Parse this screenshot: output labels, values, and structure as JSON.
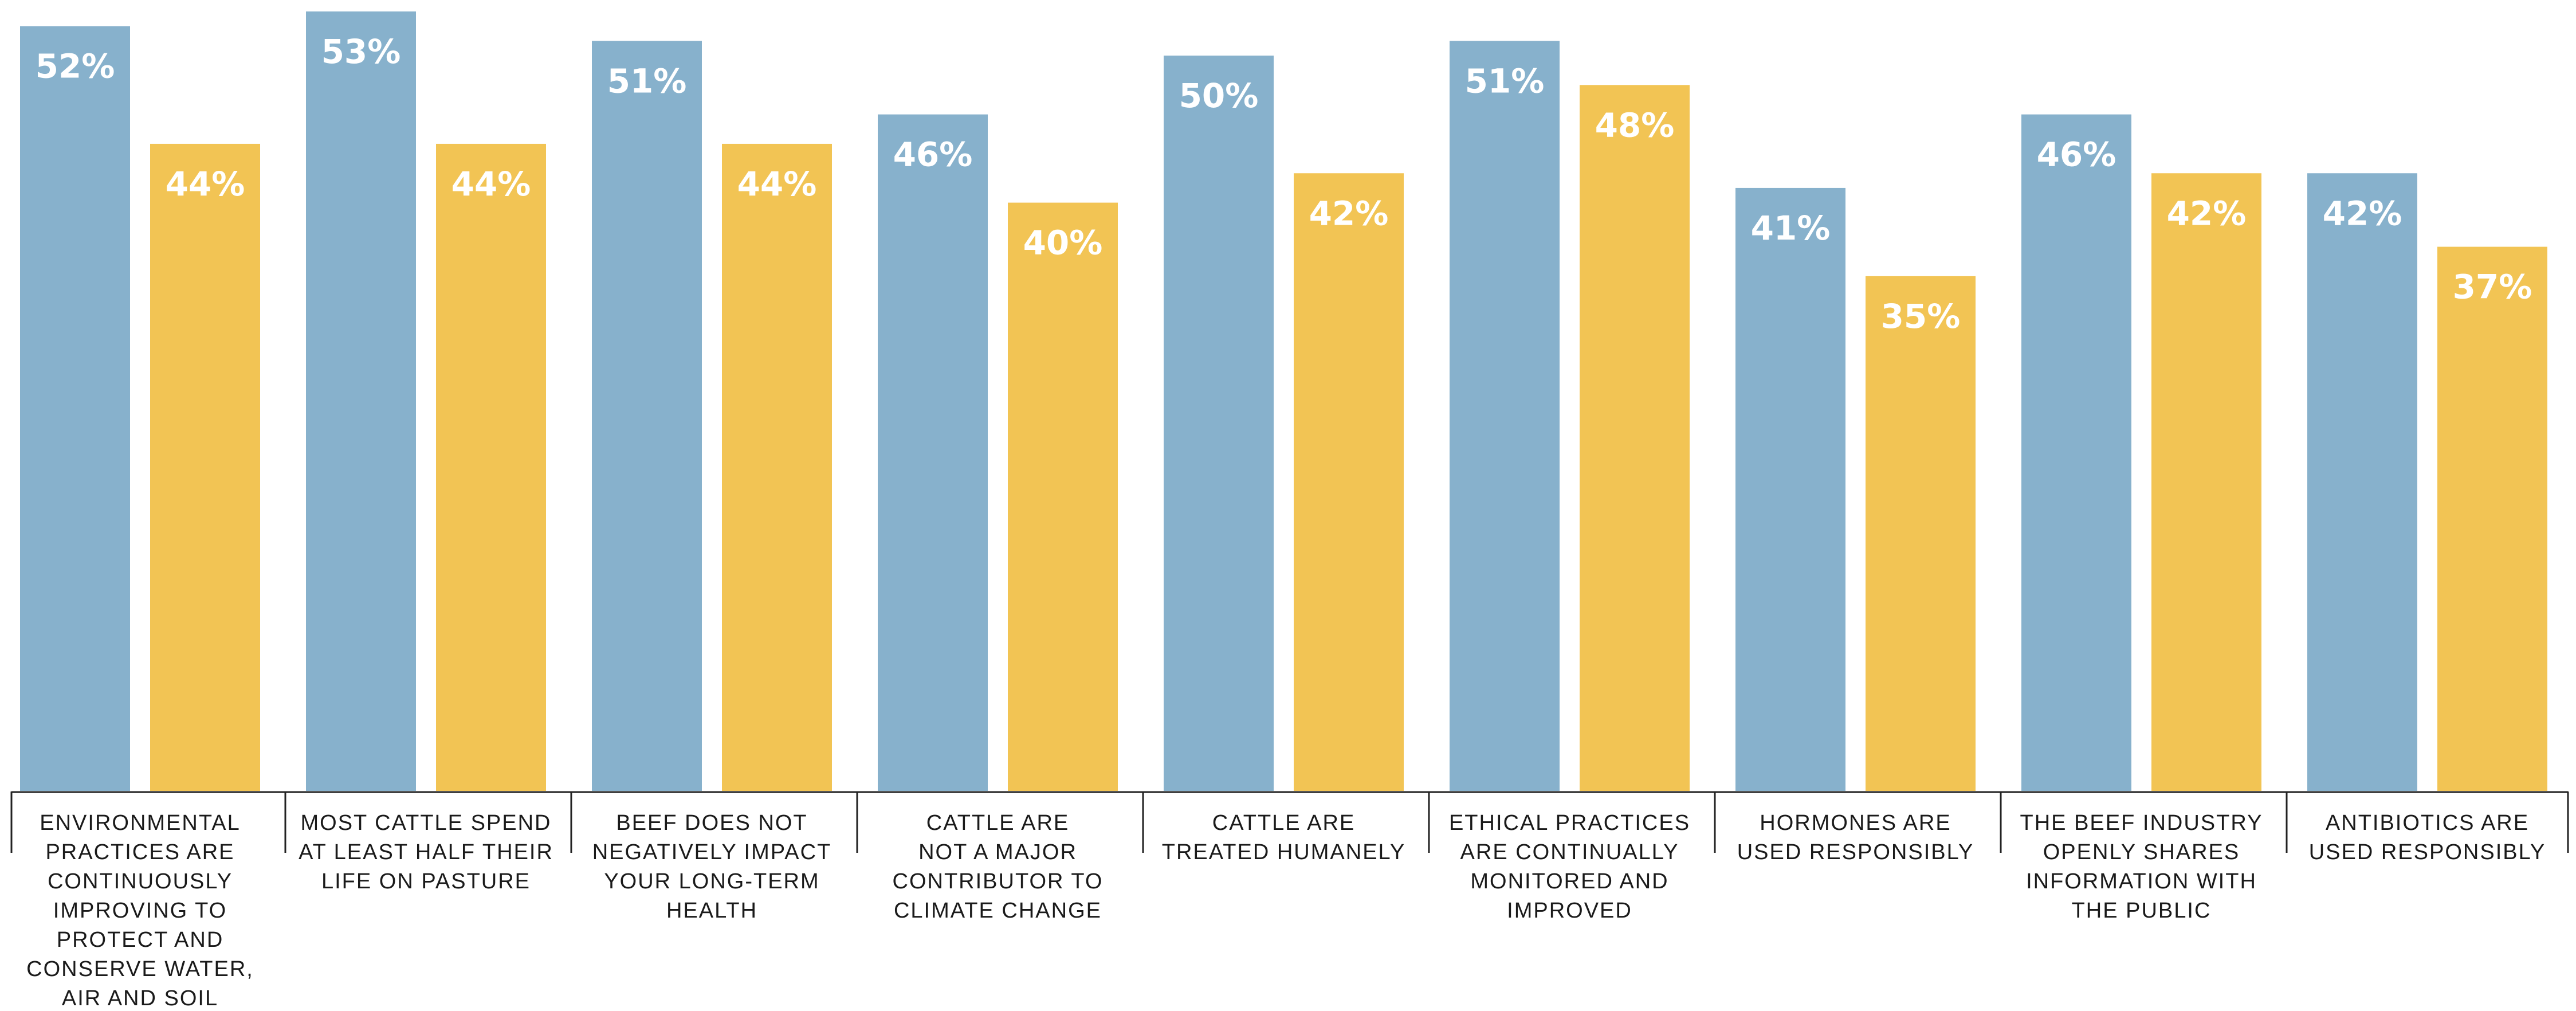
{
  "chart_data": {
    "type": "bar",
    "categories": [
      "ENVIRONMENTAL PRACTICES ARE CONTINUOUSLY IMPROVING TO PROTECT AND CONSERVE WATER, AIR AND SOIL",
      "MOST CATTLE SPEND AT LEAST HALF THEIR LIFE ON PASTURE",
      "BEEF DOES NOT NEGATIVELY IMPACT YOUR LONG-TERM HEALTH",
      "CATTLE ARE NOT A MAJOR CONTRIBUTOR TO CLIMATE CHANGE",
      "CATTLE ARE TREATED HUMANELY",
      "ETHICAL PRACTICES ARE CONTINUALLY MONITORED AND IMPROVED",
      "HORMONES ARE USED RESPONSIBLY",
      "THE BEEF INDUSTRY OPENLY SHARES INFORMATION WITH THE PUBLIC",
      "ANTIBIOTICS ARE USED RESPONSIBLY"
    ],
    "category_lines": [
      [
        "ENVIRONMENTAL",
        "PRACTICES ARE",
        "CONTINUOUSLY",
        "IMPROVING TO",
        "PROTECT AND",
        "CONSERVE WATER,",
        "AIR AND SOIL"
      ],
      [
        "MOST CATTLE SPEND",
        "AT LEAST HALF THEIR",
        "LIFE ON PASTURE"
      ],
      [
        "BEEF DOES NOT",
        "NEGATIVELY IMPACT",
        "YOUR LONG-TERM",
        "HEALTH"
      ],
      [
        "CATTLE ARE",
        "NOT A MAJOR",
        "CONTRIBUTOR TO",
        "CLIMATE CHANGE"
      ],
      [
        "CATTLE ARE",
        "TREATED HUMANELY"
      ],
      [
        "ETHICAL PRACTICES",
        "ARE CONTINUALLY",
        "MONITORED AND",
        "IMPROVED"
      ],
      [
        "HORMONES ARE",
        "USED RESPONSIBLY"
      ],
      [
        "THE BEEF INDUSTRY",
        "OPENLY SHARES",
        "INFORMATION WITH",
        "THE PUBLIC"
      ],
      [
        "ANTIBIOTICS ARE",
        "USED RESPONSIBLY"
      ]
    ],
    "series": [
      {
        "color": "#87b1cc",
        "values": [
          52,
          53,
          51,
          46,
          50,
          51,
          41,
          46,
          42
        ]
      },
      {
        "color": "#f2c454",
        "values": [
          44,
          44,
          44,
          40,
          42,
          48,
          35,
          42,
          37
        ]
      }
    ],
    "value_suffix": "%",
    "ylim": [
      0,
      53
    ],
    "grid": false,
    "legend": "none",
    "title": "",
    "xlabel": "",
    "ylabel": ""
  }
}
